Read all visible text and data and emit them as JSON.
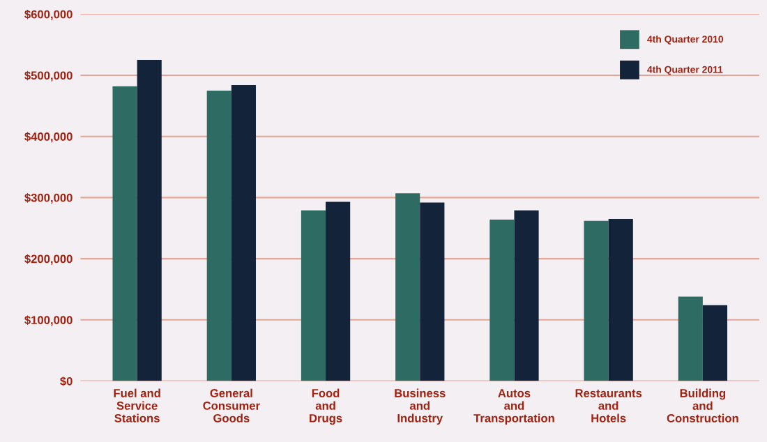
{
  "chart_data": {
    "type": "bar",
    "categories": [
      "Fuel and\nService\nStations",
      "General\nConsumer\nGoods",
      "Food\nand\nDrugs",
      "Business\nand\nIndustry",
      "Autos\nand\nTransportation",
      "Restaurants\nand\nHotels",
      "Building\nand\nConstruction"
    ],
    "series": [
      {
        "name": "4th Quarter 2010",
        "color": "#2e6b63",
        "values": [
          482000,
          475000,
          279000,
          307000,
          264000,
          262000,
          138000
        ]
      },
      {
        "name": "4th Quarter 2011",
        "color": "#13243a",
        "values": [
          525000,
          484000,
          293000,
          292000,
          279000,
          265000,
          124000
        ]
      }
    ],
    "ylim": [
      0,
      600000
    ],
    "yticks": [
      {
        "value": 0,
        "label": "$0"
      },
      {
        "value": 100000,
        "label": "$100,000"
      },
      {
        "value": 200000,
        "label": "$200,000"
      },
      {
        "value": 300000,
        "label": "$300,000"
      },
      {
        "value": 400000,
        "label": "$400,000"
      },
      {
        "value": 500000,
        "label": "$500,000"
      },
      {
        "value": 600000,
        "label": "$600,000"
      }
    ],
    "grid": "y",
    "legend": "top right"
  }
}
